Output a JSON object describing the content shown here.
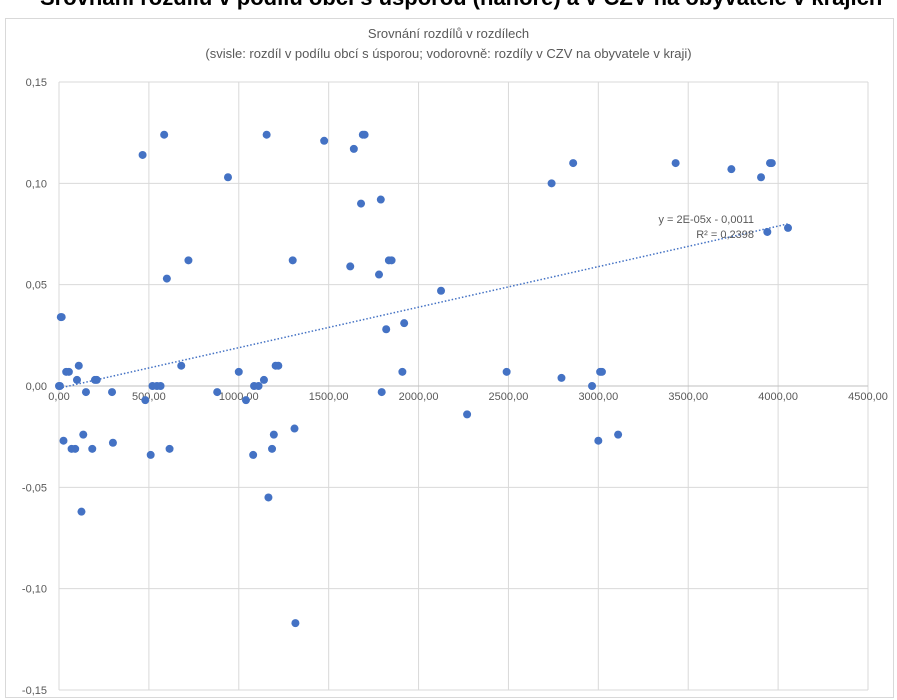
{
  "top_text": "Srovnání rozdílů v podílu obcí s úsporou (nahoře) a v CZV na obyvatele v krajích",
  "chart_data": {
    "type": "scatter",
    "title": "Srovnání rozdílů v rozdílech",
    "subtitle": "(svisle: rozdíl v podílu obcí s úsporou; vodorovně: rozdíly v CZV na obyvatele v kraji)",
    "xlabel": "",
    "ylabel": "",
    "xlim": [
      0,
      4500
    ],
    "ylim": [
      -0.15,
      0.15
    ],
    "x_ticks": [
      "0,00",
      "500,00",
      "1000,00",
      "1500,00",
      "2000,00",
      "2500,00",
      "3000,00",
      "3500,00",
      "4000,00",
      "4500,00"
    ],
    "y_ticks": [
      "0,15",
      "0,10",
      "0,05",
      "0,00",
      "-0,05",
      "-0,10",
      "-0,15"
    ],
    "grid": true,
    "marker_color": "#4472C4",
    "trendline": {
      "type": "linear",
      "slope": 2e-05,
      "intercept": -0.0011,
      "equation": "y = 2E-05x - 0,0011",
      "r_squared": "R² = 0,2398",
      "color": "#4472C4"
    },
    "points": [
      [
        0,
        0.0
      ],
      [
        5,
        0.0
      ],
      [
        10,
        0.034
      ],
      [
        15,
        0.034
      ],
      [
        25,
        -0.027
      ],
      [
        40,
        0.007
      ],
      [
        55,
        0.007
      ],
      [
        70,
        -0.031
      ],
      [
        90,
        -0.031
      ],
      [
        100,
        0.003
      ],
      [
        110,
        0.01
      ],
      [
        125,
        -0.062
      ],
      [
        135,
        -0.024
      ],
      [
        150,
        -0.003
      ],
      [
        185,
        -0.031
      ],
      [
        200,
        0.003
      ],
      [
        210,
        0.003
      ],
      [
        295,
        -0.003
      ],
      [
        300,
        -0.028
      ],
      [
        465,
        0.114
      ],
      [
        480,
        -0.007
      ],
      [
        510,
        -0.034
      ],
      [
        520,
        0.0
      ],
      [
        545,
        0.0
      ],
      [
        565,
        0.0
      ],
      [
        585,
        0.124
      ],
      [
        600,
        0.053
      ],
      [
        615,
        -0.031
      ],
      [
        680,
        0.01
      ],
      [
        720,
        0.062
      ],
      [
        880,
        -0.003
      ],
      [
        940,
        0.103
      ],
      [
        1000,
        0.007
      ],
      [
        1040,
        -0.007
      ],
      [
        1080,
        -0.034
      ],
      [
        1085,
        0.0
      ],
      [
        1110,
        0.0
      ],
      [
        1140,
        0.003
      ],
      [
        1155,
        0.124
      ],
      [
        1165,
        -0.055
      ],
      [
        1185,
        -0.031
      ],
      [
        1195,
        -0.024
      ],
      [
        1205,
        0.01
      ],
      [
        1220,
        0.01
      ],
      [
        1300,
        0.062
      ],
      [
        1310,
        -0.021
      ],
      [
        1315,
        -0.117
      ],
      [
        1475,
        0.121
      ],
      [
        1620,
        0.059
      ],
      [
        1640,
        0.117
      ],
      [
        1680,
        0.09
      ],
      [
        1690,
        0.124
      ],
      [
        1700,
        0.124
      ],
      [
        1780,
        0.055
      ],
      [
        1790,
        0.092
      ],
      [
        1795,
        -0.003
      ],
      [
        1820,
        0.028
      ],
      [
        1835,
        0.062
      ],
      [
        1850,
        0.062
      ],
      [
        1910,
        0.007
      ],
      [
        1920,
        0.031
      ],
      [
        2125,
        0.047
      ],
      [
        2270,
        -0.014
      ],
      [
        2490,
        0.007
      ],
      [
        2740,
        0.1
      ],
      [
        2795,
        0.004
      ],
      [
        2860,
        0.11
      ],
      [
        2965,
        0.0
      ],
      [
        3000,
        -0.027
      ],
      [
        3010,
        0.007
      ],
      [
        3020,
        0.007
      ],
      [
        3110,
        -0.024
      ],
      [
        3430,
        0.11
      ],
      [
        3740,
        0.107
      ],
      [
        3905,
        0.103
      ],
      [
        3940,
        0.076
      ],
      [
        3955,
        0.11
      ],
      [
        3965,
        0.11
      ],
      [
        4055,
        0.078
      ]
    ]
  }
}
